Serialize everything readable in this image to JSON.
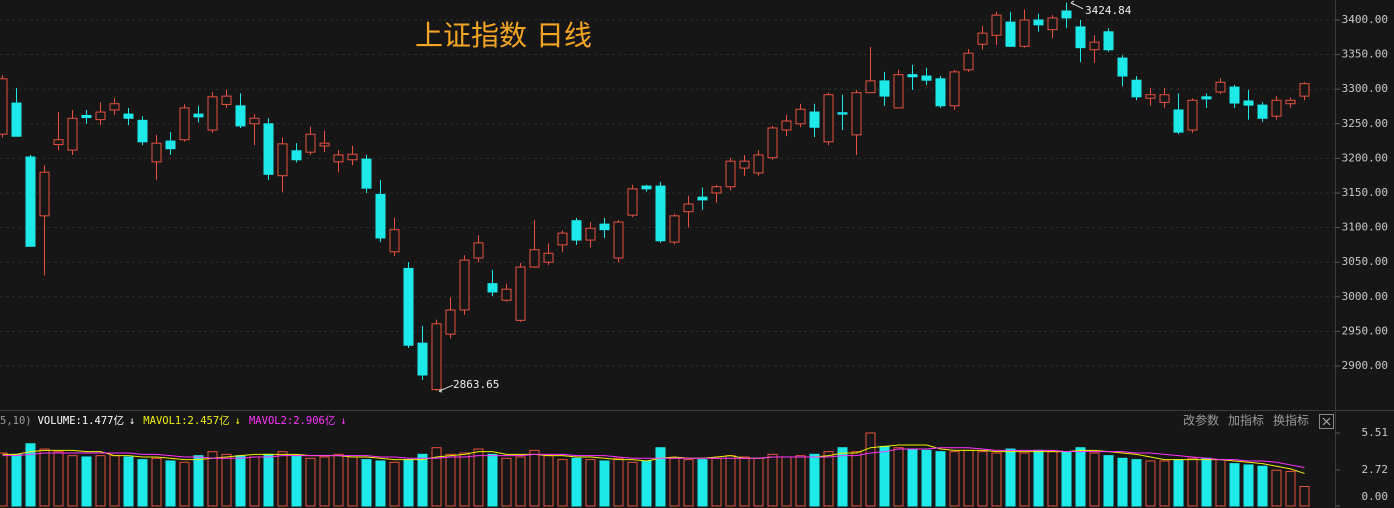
{
  "toolbar": [
    "改参数",
    "加指标",
    "换指标"
  ],
  "chart_data": [
    {
      "type": "candlestick",
      "title": "上证指数 日线",
      "up_color": "#e8513f",
      "down_color": "#1de9e9",
      "grid": true,
      "ylim": [
        2839.3,
        3428.9
      ],
      "yticks": [
        {
          "value": 2900,
          "label": "2900.00"
        },
        {
          "value": 2950,
          "label": "2950.00"
        },
        {
          "value": 3000,
          "label": "3000.00"
        },
        {
          "value": 3050,
          "label": "3050.00"
        },
        {
          "value": 3100,
          "label": "3100.00"
        },
        {
          "value": 3150,
          "label": "3150.00"
        },
        {
          "value": 3200,
          "label": "3200.00"
        },
        {
          "value": 3250,
          "label": "3250.00"
        },
        {
          "value": 3300,
          "label": "3300.00"
        },
        {
          "value": 3350,
          "label": "3350.00"
        },
        {
          "value": 3400,
          "label": "3400.00"
        }
      ],
      "high_label": 3424.84,
      "low_label": 2863.65,
      "open": [
        3235,
        3280,
        3202,
        3117,
        3220,
        3212,
        3262,
        3256,
        3270,
        3264,
        3255,
        3195,
        3225,
        3227,
        3264,
        3241,
        3278,
        3276,
        3250,
        3250,
        3175,
        3211,
        3209,
        3218,
        3195,
        3198,
        3199,
        3148,
        3065,
        3041,
        2933,
        2866,
        2946,
        2981,
        3056,
        3019,
        2995,
        2966,
        3043,
        3050,
        3075,
        3110,
        3082,
        3105,
        3056,
        3118,
        3160,
        3160,
        3079,
        3123,
        3144,
        3150,
        3159,
        3186,
        3179,
        3201,
        3241,
        3250,
        3267,
        3224,
        3266,
        3234,
        3295,
        3312,
        3273,
        3321,
        3319,
        3315,
        3276,
        3328,
        3365,
        3378,
        3397,
        3362,
        3400,
        3386,
        3413,
        3390,
        3357,
        3383,
        3345,
        3313,
        3287,
        3281,
        3270,
        3241,
        3289,
        3296,
        3303,
        3283,
        3277,
        3261,
        3279,
        3290
      ],
      "high": [
        3320,
        3302,
        3205,
        3190,
        3267,
        3270,
        3270,
        3281,
        3287,
        3273,
        3261,
        3234,
        3238,
        3278,
        3276,
        3296,
        3299,
        3294,
        3264,
        3258,
        3230,
        3222,
        3246,
        3240,
        3212,
        3218,
        3205,
        3169,
        3114,
        3050,
        2958,
        2967,
        2999,
        3060,
        3089,
        3039,
        3019,
        3049,
        3111,
        3077,
        3096,
        3114,
        3108,
        3114,
        3111,
        3162,
        3162,
        3166,
        3120,
        3146,
        3158,
        3162,
        3201,
        3205,
        3212,
        3247,
        3263,
        3279,
        3279,
        3295,
        3292,
        3299,
        3361,
        3325,
        3328,
        3335,
        3331,
        3319,
        3328,
        3358,
        3391,
        3412,
        3412,
        3415,
        3409,
        3407,
        3424.84,
        3400,
        3378,
        3388,
        3349,
        3319,
        3302,
        3302,
        3294,
        3287,
        3294,
        3316,
        3306,
        3299,
        3281,
        3290,
        3288,
        3310
      ],
      "low": [
        3230,
        3232,
        3073,
        3031,
        3212,
        3205,
        3250,
        3248,
        3263,
        3248,
        3219,
        3169,
        3205,
        3224,
        3252,
        3237,
        3273,
        3244,
        3219,
        3169,
        3151,
        3194,
        3205,
        3209,
        3180,
        3190,
        3150,
        3079,
        3059,
        2926,
        2880,
        2863.65,
        2940,
        2974,
        3050,
        3001,
        2993,
        2964,
        3042,
        3046,
        3065,
        3075,
        3071,
        3085,
        3050,
        3115,
        3152,
        3078,
        3076,
        3100,
        3126,
        3136,
        3154,
        3175,
        3175,
        3198,
        3232,
        3245,
        3231,
        3219,
        3241,
        3205,
        3295,
        3276,
        3273,
        3299,
        3306,
        3273,
        3270,
        3325,
        3357,
        3364,
        3361,
        3360,
        3383,
        3374,
        3388,
        3339,
        3338,
        3354,
        3304,
        3284,
        3276,
        3273,
        3235,
        3237,
        3273,
        3293,
        3273,
        3256,
        3253,
        3256,
        3273,
        3284
      ],
      "close": [
        3315,
        3232,
        3073,
        3180,
        3227,
        3258,
        3259,
        3267,
        3279,
        3258,
        3224,
        3222,
        3214,
        3273,
        3260,
        3289,
        3290,
        3247,
        3258,
        3177,
        3221,
        3198,
        3235,
        3222,
        3205,
        3206,
        3157,
        3085,
        3097,
        2930,
        2887,
        2961,
        2981,
        3053,
        3078,
        3007,
        3011,
        3043,
        3068,
        3063,
        3092,
        3082,
        3099,
        3097,
        3108,
        3156,
        3156,
        3081,
        3117,
        3134,
        3140,
        3159,
        3196,
        3196,
        3205,
        3244,
        3254,
        3271,
        3245,
        3292,
        3264,
        3295,
        3312,
        3290,
        3321,
        3318,
        3313,
        3276,
        3325,
        3352,
        3381,
        3407,
        3362,
        3400,
        3393,
        3403,
        3403,
        3360,
        3368,
        3357,
        3319,
        3289,
        3292,
        3292,
        3238,
        3284,
        3286,
        3310,
        3280,
        3277,
        3258,
        3284,
        3284,
        3308
      ]
    },
    {
      "type": "volume",
      "prefix": "5,10)",
      "label": "VOLUME:1.477亿",
      "label_arrow": "↓",
      "label_color": "#ffffff",
      "ylim": [
        0,
        5.51
      ],
      "yticks": [
        5.51,
        2.72,
        {
          "value": 0,
          "label": "0.00"
        }
      ],
      "values": [
        4.0,
        3.9,
        4.7,
        4.3,
        4.1,
        3.8,
        3.7,
        3.8,
        3.8,
        3.7,
        3.5,
        3.6,
        3.4,
        3.3,
        3.8,
        4.1,
        3.9,
        3.8,
        3.7,
        3.9,
        4.1,
        3.8,
        3.6,
        3.7,
        3.9,
        3.7,
        3.5,
        3.4,
        3.3,
        3.5,
        3.9,
        4.4,
        3.9,
        4.0,
        4.3,
        3.9,
        3.6,
        3.7,
        4.2,
        3.8,
        3.5,
        3.6,
        3.5,
        3.4,
        3.6,
        3.3,
        3.4,
        4.4,
        3.6,
        3.5,
        3.5,
        3.6,
        3.8,
        3.7,
        3.6,
        3.9,
        3.7,
        3.8,
        3.9,
        4.1,
        4.4,
        4.1,
        5.51,
        4.5,
        4.4,
        4.3,
        4.2,
        4.1,
        4.1,
        4.2,
        4.1,
        4.0,
        4.3,
        4.0,
        4.2,
        4.1,
        4.1,
        4.4,
        4.0,
        3.8,
        3.6,
        3.5,
        3.4,
        3.4,
        3.5,
        3.6,
        3.6,
        3.5,
        3.2,
        3.1,
        3.0,
        2.7,
        2.6,
        1.477
      ],
      "series": [
        {
          "name": "MAVOL1:2.457亿",
          "arrow": "↓",
          "color": "#f0f000",
          "values": [
            3.9,
            3.9,
            4.1,
            4.2,
            4.2,
            4.2,
            4.1,
            4.1,
            3.8,
            3.8,
            3.7,
            3.7,
            3.6,
            3.5,
            3.5,
            3.6,
            3.7,
            3.8,
            3.9,
            3.9,
            3.9,
            3.9,
            3.8,
            3.8,
            3.8,
            3.7,
            3.7,
            3.6,
            3.5,
            3.5,
            3.5,
            3.7,
            3.8,
            3.9,
            4.1,
            4.1,
            3.9,
            3.9,
            3.9,
            3.8,
            3.8,
            3.7,
            3.7,
            3.6,
            3.5,
            3.5,
            3.4,
            3.6,
            3.7,
            3.6,
            3.6,
            3.7,
            3.8,
            3.6,
            3.6,
            3.7,
            3.7,
            3.7,
            3.7,
            3.8,
            4.0,
            4.0,
            4.4,
            4.5,
            4.6,
            4.6,
            4.6,
            4.3,
            4.2,
            4.2,
            4.2,
            4.1,
            4.1,
            4.1,
            4.1,
            4.1,
            4.1,
            4.2,
            4.2,
            4.1,
            4.0,
            3.9,
            3.7,
            3.5,
            3.5,
            3.5,
            3.5,
            3.5,
            3.4,
            3.3,
            3.2,
            3.0,
            2.8,
            2.457
          ]
        },
        {
          "name": "MAVOL2:2.906亿",
          "arrow": "↓",
          "color": "#ff33ff",
          "values": [
            3.8,
            3.8,
            3.9,
            4.0,
            4.0,
            4.0,
            4.0,
            4.0,
            4.0,
            4.0,
            3.9,
            3.9,
            3.8,
            3.7,
            3.7,
            3.6,
            3.6,
            3.6,
            3.7,
            3.7,
            3.8,
            3.8,
            3.8,
            3.8,
            3.8,
            3.8,
            3.8,
            3.7,
            3.7,
            3.6,
            3.6,
            3.6,
            3.7,
            3.7,
            3.8,
            3.8,
            3.8,
            3.8,
            3.9,
            3.9,
            3.9,
            3.8,
            3.8,
            3.8,
            3.7,
            3.6,
            3.6,
            3.6,
            3.6,
            3.6,
            3.6,
            3.6,
            3.6,
            3.6,
            3.6,
            3.7,
            3.7,
            3.7,
            3.7,
            3.7,
            3.8,
            3.8,
            4.0,
            4.1,
            4.3,
            4.3,
            4.3,
            4.4,
            4.4,
            4.4,
            4.3,
            4.2,
            4.2,
            4.2,
            4.2,
            4.2,
            4.1,
            4.1,
            4.1,
            4.1,
            4.1,
            4.0,
            4.0,
            3.9,
            3.8,
            3.7,
            3.6,
            3.5,
            3.5,
            3.4,
            3.4,
            3.3,
            3.1,
            2.906
          ]
        }
      ]
    }
  ]
}
